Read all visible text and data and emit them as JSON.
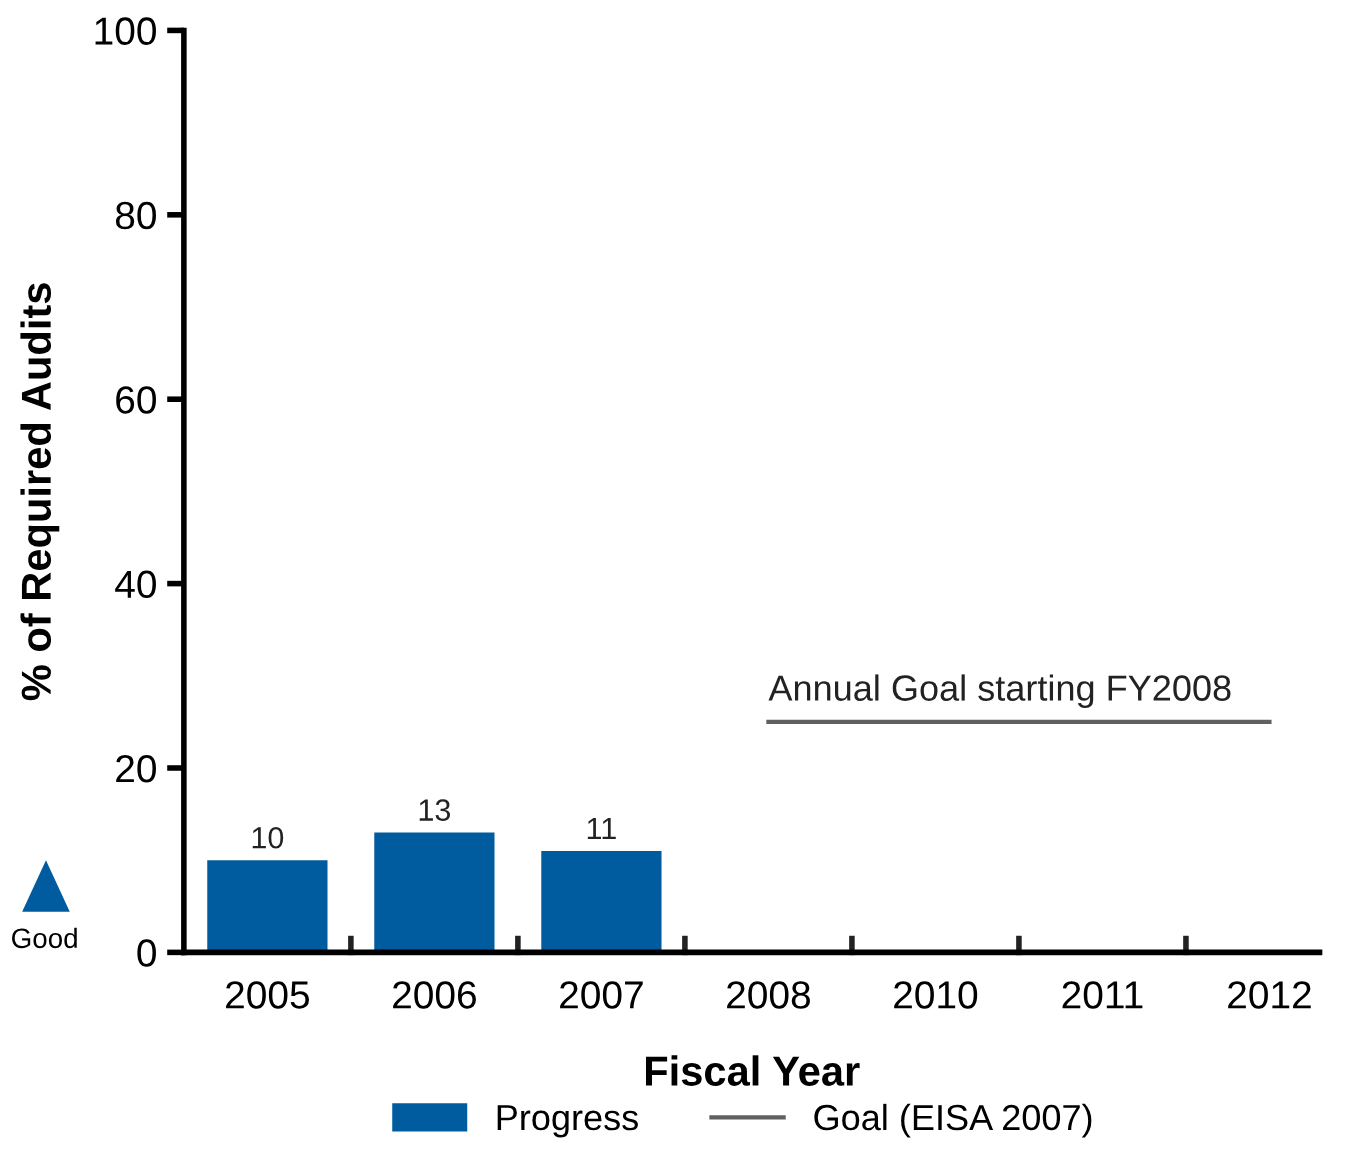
{
  "chart_data": {
    "type": "bar",
    "xlabel": "Fiscal Year",
    "ylabel": "% of Required Audits",
    "categories": [
      "2005",
      "2006",
      "2007",
      "2008",
      "2010",
      "2011",
      "2012"
    ],
    "series": [
      {
        "name": "Progress",
        "color": "#005c9e",
        "values": [
          10,
          13,
          11,
          null,
          null,
          null,
          null
        ],
        "value_labels": [
          "10",
          "13",
          "11",
          null,
          null,
          null,
          null
        ]
      },
      {
        "name": "Goal (EISA 2007)",
        "type": "line",
        "color": "#606060",
        "values": [
          null,
          null,
          null,
          25,
          25,
          25,
          25
        ]
      }
    ],
    "ylim": [
      0,
      100
    ],
    "yticks": [
      0,
      20,
      40,
      60,
      80,
      100
    ],
    "grid": false,
    "legend": "bottom",
    "annotations": [
      {
        "text": "Annual Goal starting FY2008",
        "x": "2008",
        "y": 25
      },
      "Good"
    ]
  }
}
